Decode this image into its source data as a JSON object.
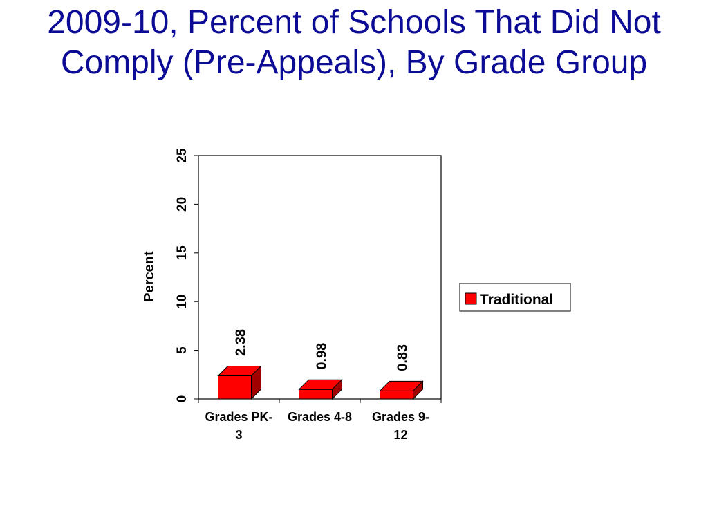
{
  "chart_data": {
    "type": "bar",
    "title": "2009-10, Percent of Schools That Did Not Comply (Pre-Appeals), By Grade Group",
    "categories": [
      [
        "Grades PK-",
        "3"
      ],
      [
        "Grades 4-8"
      ],
      [
        "Grades 9-",
        "12"
      ]
    ],
    "series": [
      {
        "name": "Traditional",
        "values": [
          2.38,
          0.98,
          0.83
        ],
        "value_labels": [
          "2.38",
          "0.98",
          "0.83"
        ],
        "color": "#ff0000",
        "shade_color": "#a00000"
      }
    ],
    "ylabel": "Percent",
    "ylim": [
      0,
      25
    ],
    "yticks": [
      "0",
      "5",
      "10",
      "15",
      "20",
      "25"
    ],
    "grid": false,
    "legend_position": "right",
    "style": "3d-bar"
  }
}
